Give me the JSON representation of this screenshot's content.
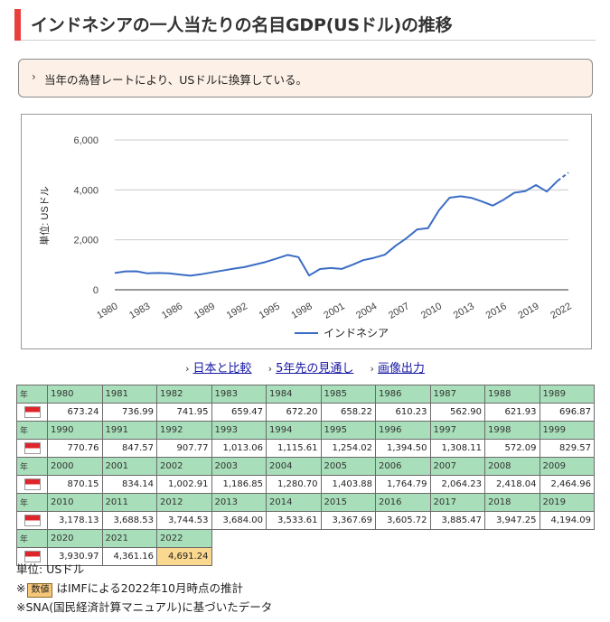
{
  "title": "インドネシアの一人当たりの名目GDP(USドル)の推移",
  "note": "当年の為替レートにより、USドルに換算している。",
  "links": [
    {
      "label": "日本と比較"
    },
    {
      "label": "5年先の見通し"
    },
    {
      "label": "画像出力"
    }
  ],
  "colors": {
    "line": "#3b6dc4",
    "accent": "#e8413b",
    "header_bg": "#a8dfba",
    "estimate_bg": "#fbd890"
  },
  "table": {
    "header_label": "年",
    "flag_icon": "indonesia-flag-icon",
    "rows": [
      {
        "years": [
          "1980",
          "1981",
          "1982",
          "1983",
          "1984",
          "1985",
          "1986",
          "1987",
          "1988",
          "1989"
        ],
        "values": [
          "673.24",
          "736.99",
          "741.95",
          "659.47",
          "672.20",
          "658.22",
          "610.23",
          "562.90",
          "621.93",
          "696.87"
        ]
      },
      {
        "years": [
          "1990",
          "1991",
          "1992",
          "1993",
          "1994",
          "1995",
          "1996",
          "1997",
          "1998",
          "1999"
        ],
        "values": [
          "770.76",
          "847.57",
          "907.77",
          "1,013.06",
          "1,115.61",
          "1,254.02",
          "1,394.50",
          "1,308.11",
          "572.09",
          "829.57"
        ]
      },
      {
        "years": [
          "2000",
          "2001",
          "2002",
          "2003",
          "2004",
          "2005",
          "2006",
          "2007",
          "2008",
          "2009"
        ],
        "values": [
          "870.15",
          "834.14",
          "1,002.91",
          "1,186.85",
          "1,280.70",
          "1,403.88",
          "1,764.79",
          "2,064.23",
          "2,418.04",
          "2,464.96"
        ]
      },
      {
        "years": [
          "2010",
          "2011",
          "2012",
          "2013",
          "2014",
          "2015",
          "2016",
          "2017",
          "2018",
          "2019"
        ],
        "values": [
          "3,178.13",
          "3,688.53",
          "3,744.53",
          "3,684.00",
          "3,533.61",
          "3,367.69",
          "3,605.72",
          "3,885.47",
          "3,947.25",
          "4,194.09"
        ]
      },
      {
        "years": [
          "2020",
          "2021",
          "2022"
        ],
        "values": [
          "3,930.97",
          "4,361.16",
          "4,691.24"
        ]
      }
    ]
  },
  "footnotes": {
    "unit": "単位: USドル",
    "estimate_prefix": "※",
    "estimate_badge": "数値",
    "estimate_text": "はIMFによる2022年10月時点の推計",
    "sna": "※SNA(国民経済計算マニュアル)に基づいたデータ"
  },
  "chart_data": {
    "type": "line",
    "title": "",
    "xlabel": "",
    "ylabel": "単位: USドル",
    "ylim": [
      0,
      6000
    ],
    "yticks": [
      0,
      2000,
      4000,
      6000
    ],
    "ytick_labels": [
      "0",
      "2,000",
      "4,000",
      "6,000"
    ],
    "xtick_labels": [
      "1980",
      "1983",
      "1986",
      "1989",
      "1992",
      "1995",
      "1998",
      "2001",
      "2004",
      "2007",
      "2010",
      "2013",
      "2016",
      "2019",
      "2022"
    ],
    "grid": true,
    "legend_position": "bottom",
    "x": [
      1980,
      1981,
      1982,
      1983,
      1984,
      1985,
      1986,
      1987,
      1988,
      1989,
      1990,
      1991,
      1992,
      1993,
      1994,
      1995,
      1996,
      1997,
      1998,
      1999,
      2000,
      2001,
      2002,
      2003,
      2004,
      2005,
      2006,
      2007,
      2008,
      2009,
      2010,
      2011,
      2012,
      2013,
      2014,
      2015,
      2016,
      2017,
      2018,
      2019,
      2020,
      2021,
      2022
    ],
    "series": [
      {
        "name": "インドネシア",
        "values": [
          673.24,
          736.99,
          741.95,
          659.47,
          672.2,
          658.22,
          610.23,
          562.9,
          621.93,
          696.87,
          770.76,
          847.57,
          907.77,
          1013.06,
          1115.61,
          1254.02,
          1394.5,
          1308.11,
          572.09,
          829.57,
          870.15,
          834.14,
          1002.91,
          1186.85,
          1280.7,
          1403.88,
          1764.79,
          2064.23,
          2418.04,
          2464.96,
          3178.13,
          3688.53,
          3744.53,
          3684.0,
          3533.61,
          3367.69,
          3605.72,
          3885.47,
          3947.25,
          4194.09,
          3930.97,
          4361.16,
          4691.24
        ],
        "estimate_from": 2021
      }
    ]
  }
}
